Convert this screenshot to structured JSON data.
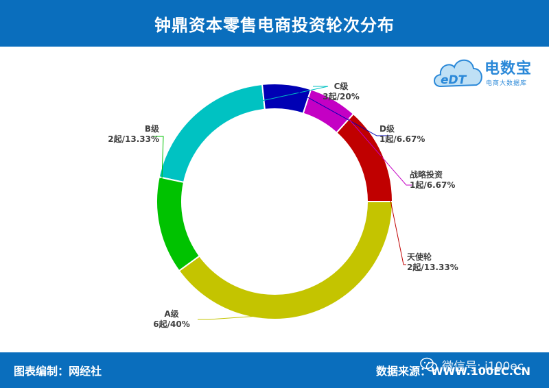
{
  "header": {
    "title": "钟鼎资本零售电商投资轮次分布"
  },
  "footer": {
    "left": "图表编制：网经社",
    "right": "数据来源：WWW.100EC.CN"
  },
  "watermark": {
    "text": "微信号: i100ec"
  },
  "logo": {
    "name": "电数宝",
    "subtitle": "电商大数据库",
    "mark": "eDT"
  },
  "colors": {
    "header_bg": "#0a6ebd",
    "logo": "#2a88d8"
  },
  "chart_data": {
    "type": "pie",
    "donut": true,
    "title": "钟鼎资本零售电商投资轮次分布",
    "slices": [
      {
        "name": "C级",
        "label": "3起/20%",
        "value": 3,
        "percent": 20,
        "color": "#00c2c2"
      },
      {
        "name": "D级",
        "label": "1起/6.67%",
        "value": 1,
        "percent": 6.67,
        "color": "#0000b4"
      },
      {
        "name": "战略投资",
        "label": "1起/6.67%",
        "value": 1,
        "percent": 6.67,
        "color": "#c400c4"
      },
      {
        "name": "天使轮",
        "label": "2起/13.33%",
        "value": 2,
        "percent": 13.33,
        "color": "#c00000"
      },
      {
        "name": "A级",
        "label": "6起/40%",
        "value": 6,
        "percent": 40,
        "color": "#c4c400"
      },
      {
        "name": "B级",
        "label": "2起/13.33%",
        "value": 2,
        "percent": 13.33,
        "color": "#00c200"
      }
    ]
  }
}
